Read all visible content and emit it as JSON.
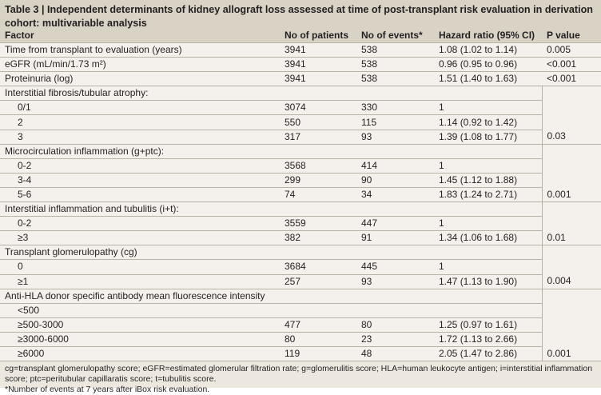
{
  "caption": "Table 3 | Independent determinants of kidney allograft loss assessed at time of post-transplant risk evaluation in derivation cohort: multivariable analysis",
  "headers": [
    "Factor",
    "No of patients",
    "No of events*",
    "Hazard ratio (95% CI)",
    "P value"
  ],
  "rows": [
    {
      "factor": "Time from transplant to evaluation (years)",
      "patients": "3941",
      "events": "538",
      "hr": "1.08 (1.02 to 1.14)",
      "p": "0.005",
      "kind": "main"
    },
    {
      "factor": "eGFR (mL/min/1.73 m²)",
      "patients": "3941",
      "events": "538",
      "hr": "0.96 (0.95 to 0.96)",
      "p": "<0.001",
      "kind": "main"
    },
    {
      "factor": "Proteinuria (log)",
      "patients": "3941",
      "events": "538",
      "hr": "1.51 (1.40 to 1.63)",
      "p": "<0.001",
      "kind": "main"
    },
    {
      "factor": "Interstitial fibrosis/tubular atrophy:",
      "patients": "",
      "events": "",
      "hr": "",
      "p": "",
      "kind": "group"
    },
    {
      "factor": "0/1",
      "patients": "3074",
      "events": "330",
      "hr": "1",
      "p": "",
      "kind": "sub"
    },
    {
      "factor": "2",
      "patients": "550",
      "events": "115",
      "hr": "1.14 (0.92 to 1.42)",
      "p": "",
      "kind": "sub"
    },
    {
      "factor": "3",
      "patients": "317",
      "events": "93",
      "hr": "1.39 (1.08 to 1.77)",
      "p": "0.03",
      "kind": "sublast"
    },
    {
      "factor": "Microcirculation inflammation (g+ptc):",
      "patients": "",
      "events": "",
      "hr": "",
      "p": "",
      "kind": "group"
    },
    {
      "factor": "0-2",
      "patients": "3568",
      "events": "414",
      "hr": "1",
      "p": "",
      "kind": "sub"
    },
    {
      "factor": "3-4",
      "patients": "299",
      "events": "90",
      "hr": "1.45 (1.12 to 1.88)",
      "p": "",
      "kind": "sub"
    },
    {
      "factor": "5-6",
      "patients": "74",
      "events": "34",
      "hr": "1.83 (1.24 to 2.71)",
      "p": "0.001",
      "kind": "sublast"
    },
    {
      "factor": "Interstitial inflammation and tubulitis (i+t):",
      "patients": "",
      "events": "",
      "hr": "",
      "p": "",
      "kind": "group"
    },
    {
      "factor": "0-2",
      "patients": "3559",
      "events": "447",
      "hr": "1",
      "p": "",
      "kind": "sub"
    },
    {
      "factor": "≥3",
      "patients": "382",
      "events": "91",
      "hr": "1.34 (1.06 to 1.68)",
      "p": "0.01",
      "kind": "sublast"
    },
    {
      "factor": "Transplant glomerulopathy (cg)",
      "patients": "",
      "events": "",
      "hr": "",
      "p": "",
      "kind": "group"
    },
    {
      "factor": "0",
      "patients": "3684",
      "events": "445",
      "hr": "1",
      "p": "",
      "kind": "sub"
    },
    {
      "factor": "≥1",
      "patients": "257",
      "events": "93",
      "hr": "1.47 (1.13 to 1.90)",
      "p": "0.004",
      "kind": "sublast"
    },
    {
      "factor": "Anti-HLA donor specific antibody mean fluorescence intensity",
      "patients": "",
      "events": "",
      "hr": "",
      "p": "",
      "kind": "group"
    },
    {
      "factor": "<500",
      "patients": "",
      "events": "",
      "hr": "",
      "p": "",
      "kind": "sub"
    },
    {
      "factor": "≥500-3000",
      "patients": "477",
      "events": "80",
      "hr": "1.25 (0.97 to 1.61)",
      "p": "",
      "kind": "sub"
    },
    {
      "factor": "≥3000-6000",
      "patients": "80",
      "events": "23",
      "hr": "1.72 (1.13 to 2.66)",
      "p": "",
      "kind": "sub"
    },
    {
      "factor": "≥6000",
      "patients": "119",
      "events": "48",
      "hr": "2.05 (1.47 to 2.86)",
      "p": "0.001",
      "kind": "sublast"
    }
  ],
  "footnotes": [
    "cg=transplant glomerulopathy score; eGFR=estimated glomerular filtration rate; g=glomerulitis score; HLA=human leukocyte antigen; i=interstitial inflammation score; ptc=peritubular capillaratis score; t=tubulitis score.",
    "*Number of events at 7 years after iBox risk evaluation."
  ]
}
